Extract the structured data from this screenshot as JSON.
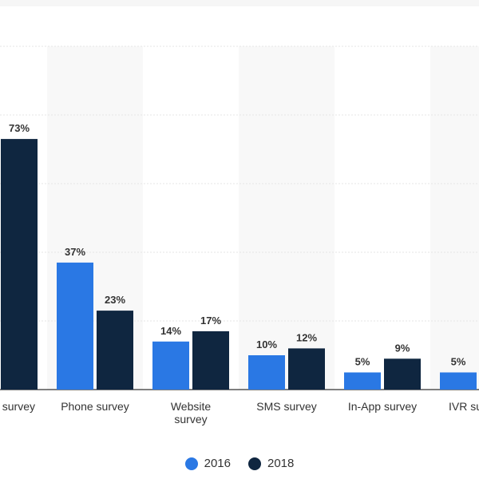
{
  "chart_data": {
    "type": "bar",
    "categories": [
      "Email survey",
      "Phone survey",
      "Website survey",
      "SMS survey",
      "In-App survey",
      "IVR survey"
    ],
    "series": [
      {
        "name": "2016",
        "values": [
          null,
          37,
          14,
          10,
          5,
          5
        ],
        "labels": [
          "",
          "37%",
          "14%",
          "10%",
          "5%",
          "5%"
        ],
        "color": "#2a78e4"
      },
      {
        "name": "2018",
        "values": [
          73,
          23,
          17,
          12,
          9,
          null
        ],
        "labels": [
          "73%",
          "23%",
          "17%",
          "12%",
          "9%",
          ""
        ],
        "color": "#0f2640"
      }
    ],
    "category_labels": [
      [
        "survey"
      ],
      [
        "Phone survey"
      ],
      [
        "Website",
        "survey"
      ],
      [
        "SMS survey"
      ],
      [
        "In-App survey"
      ],
      [
        "IVR su"
      ]
    ],
    "ylim": [
      0,
      100
    ],
    "grid": true,
    "legend_position": "bottom",
    "value_suffix": "%"
  }
}
